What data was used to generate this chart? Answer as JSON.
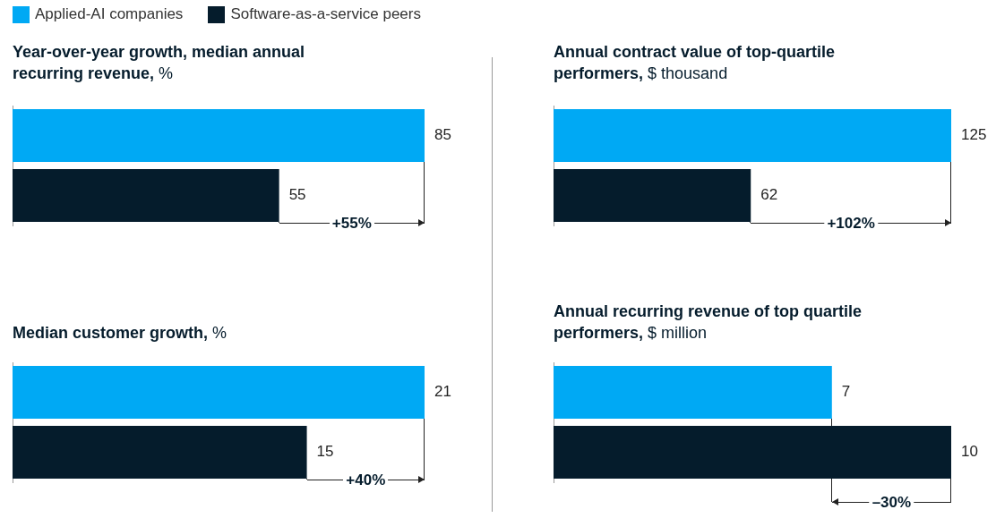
{
  "chart_data": [
    {
      "type": "bar",
      "orientation": "horizontal",
      "title": "Year-over-year growth, median annual recurring revenue,",
      "subtitle": "%",
      "categories": [
        null
      ],
      "legend": "top left",
      "data_labels": true,
      "annotations": [
        "+55%"
      ],
      "series": [
        {
          "name": "Applied-AI companies",
          "color": "#00a9f4",
          "values": [
            85
          ]
        },
        {
          "name": "Software-as-a-service peers",
          "color": "#051c2c",
          "values": [
            55
          ]
        }
      ]
    },
    {
      "type": "bar",
      "orientation": "horizontal",
      "title": "Annual contract value of top-quartile performers,",
      "subtitle": "$ thousand",
      "categories": [
        null
      ],
      "data_labels": true,
      "annotations": [
        "+102%"
      ],
      "series": [
        {
          "color": "#00a9f4",
          "values": [
            125
          ]
        },
        {
          "color": "#051c2c",
          "values": [
            62
          ]
        }
      ]
    },
    {
      "type": "bar",
      "orientation": "horizontal",
      "title": "Median customer growth,",
      "subtitle": "%",
      "categories": [
        null
      ],
      "data_labels": true,
      "annotations": [
        "+40%"
      ],
      "series": [
        {
          "color": "#00a9f4",
          "values": [
            21
          ]
        },
        {
          "color": "#051c2c",
          "values": [
            15
          ]
        }
      ]
    },
    {
      "type": "bar",
      "orientation": "horizontal",
      "title": "Annual recurring revenue of top quartile performers,",
      "subtitle": "$ million",
      "categories": [
        null
      ],
      "data_labels": true,
      "annotations": [
        "–30%"
      ],
      "series": [
        {
          "color": "#00a9f4",
          "values": [
            7
          ]
        },
        {
          "color": "#051c2c",
          "values": [
            10
          ]
        }
      ]
    }
  ]
}
